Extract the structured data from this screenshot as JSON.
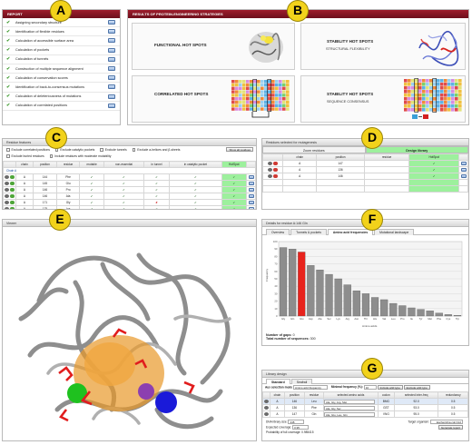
{
  "badges": {
    "a": "A",
    "b": "B",
    "c": "C",
    "d": "D",
    "e": "E",
    "f": "F",
    "g": "G"
  },
  "report": {
    "title": "REPORT",
    "items": [
      "Assigning secondary structure",
      "Identification of flexible residues",
      "Calculation of accessible surface area",
      "Calculation of pockets",
      "Calculation of tunnels",
      "Construction of multiple sequence alignment",
      "Calculation of conservation scores",
      "Identification of back-to-consensus mutations",
      "Calculation of deleteriousness of mutations",
      "Calculation of correlated positions"
    ]
  },
  "results": {
    "title": "RESULTS OF PROTEIN-ENGINEERING STRATEGIES",
    "functional": "FUNCTIONAL HOT SPOTS",
    "stability1": "STABILITY HOT SPOTS",
    "stability1_sub": "STRUCTURAL FLEXIBILITY",
    "correlated": "CORRELATED HOT SPOTS",
    "stability2": "STABILITY HOT SPOTS",
    "stability2_sub": "SEQUENCE CONSENSUS"
  },
  "residue_features": {
    "title": "Residue features",
    "options": [
      "Exclude correlated positions",
      "Exclude catalytic pockets",
      "Exclude tunnels",
      "Exclude a-helices and β-sheets",
      "Exclude buried residues",
      "Include residues with moderate mutability"
    ],
    "show_all": "Show all residues",
    "columns": [
      "chain",
      "position",
      "residue",
      "mutable",
      "non-essential",
      "in tunnel",
      "in catalytic pocket",
      "HotSpot"
    ],
    "group_label": "Chain A",
    "rows": [
      {
        "chain": "A",
        "position": "144",
        "residue": "Phe"
      },
      {
        "chain": "A",
        "position": "145",
        "residue": "Glu"
      },
      {
        "chain": "A",
        "position": "146",
        "position_note": "",
        "residue": "Pro"
      },
      {
        "chain": "A",
        "position": "146",
        "residue": "Ala"
      },
      {
        "chain": "A",
        "position": "171",
        "residue": "Gly"
      },
      {
        "chain": "A",
        "position": "175",
        "residue": "Lys"
      },
      {
        "chain": "A",
        "position": "133",
        "residue": "Arg"
      },
      {
        "chain": "A",
        "position": "136",
        "residue": "Ile"
      },
      {
        "chain": "A",
        "position": "137",
        "residue": "Ile"
      }
    ]
  },
  "mutagenesis": {
    "title": "Residues selected for mutagenesis",
    "tab_zoom": "Zoom residues",
    "tab_design": "Design library",
    "columns": [
      "chain",
      "position",
      "residue",
      "HotSpot"
    ],
    "rows": [
      {
        "chain": "A",
        "position": "147"
      },
      {
        "chain": "A",
        "position": "136"
      },
      {
        "chain": "A",
        "position": "146"
      }
    ]
  },
  "viewer": {
    "title": "Viewer"
  },
  "details": {
    "title": "Details for residue A:146 Gln",
    "tabs": [
      "Overview",
      "Tunnels & pockets",
      "Amino acid frequencies",
      "Mutational landscape"
    ],
    "ylabel": "Frequency",
    "xlabel": "Amino acids",
    "gaps_label": "Number of gaps:",
    "gaps_value": "0",
    "total_label": "Total number of sequences:",
    "total_value": "300"
  },
  "chart_data": {
    "type": "bar",
    "categories": [
      "Gly",
      "Gln",
      "Glu",
      "Asp",
      "Ala",
      "Ser",
      "Lys",
      "Arg",
      "Asn",
      "Thr",
      "His",
      "Val",
      "Leu",
      "Pro",
      "Ile",
      "Tyr",
      "Met",
      "Phe",
      "Cys",
      "Trp"
    ],
    "values": [
      92,
      90,
      86,
      68,
      62,
      56,
      50,
      42,
      34,
      30,
      25,
      22,
      17,
      14,
      11,
      9,
      7,
      4,
      2,
      1
    ],
    "highlight": "Glu",
    "ylim": [
      0,
      100
    ],
    "grid": true
  },
  "library": {
    "title": "Library design",
    "tabs": [
      "Standard",
      "Seafrail"
    ],
    "aa_label": "Aux selection mode",
    "aa_value": "Amino acid frequency",
    "minfreq_label": "Minimal frequency (%):",
    "minfreq_value": "10",
    "include_wt": "Include wild type",
    "exclude_wt": "Exclude wild type",
    "columns": [
      "chain",
      "position",
      "residue",
      "selected amino acids",
      "codon",
      "selected inter-freq",
      "redundancy"
    ],
    "rows": [
      {
        "chain": "A",
        "position": "146",
        "residue": "Leu",
        "aa": "Ala, Gly, Arg, Met",
        "codon": "BMG",
        "freq": "92.0",
        "red": "0.5"
      },
      {
        "chain": "A",
        "position": "136",
        "residue": "Phe",
        "aa": "Ala, Gly, Ser",
        "codon": "GST",
        "freq": "93.0",
        "red": "0.5"
      },
      {
        "chain": "A",
        "position": "147",
        "residue": "Gln",
        "aa": "Ala, Glu, Leu, Gln",
        "codon": "VNG",
        "freq": "95.0",
        "red": "0.5"
      }
    ],
    "dna_label": "DNA library size:",
    "dna_value": "448",
    "coverage_label": "Expected coverage:",
    "coverage_value": "0.95",
    "prob_label": "Probability of full coverage:",
    "prob_value": "0.985415",
    "target_label": "Target organism:",
    "target_value": "Escherichia coli K12",
    "generate": "Generate report"
  },
  "colors": {
    "header_red": "#8a1424",
    "badge_yellow": "#f2d21b",
    "hotspot_green": "#9df09d",
    "bar_grey": "#8d8d8d",
    "bar_red": "#e8231d"
  }
}
